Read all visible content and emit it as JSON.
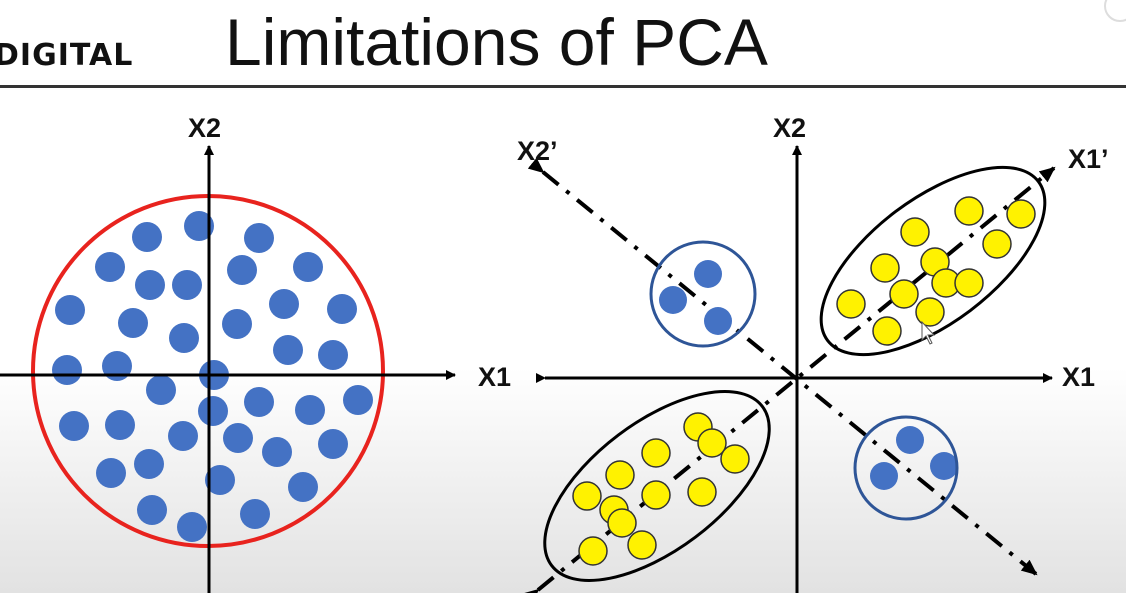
{
  "logo_text": "DIGITAL",
  "title": "Limitations of PCA",
  "colors": {
    "blue_point": "#4472C4",
    "yellow_point": "#FFF200",
    "circle": "#E8231E",
    "ellipse": "#000000",
    "cluster_ring": "#2E5597"
  },
  "left_plot": {
    "x_axis_label": "X1",
    "y_axis_label": "X2"
  },
  "right_plot": {
    "x_axis_label": "X1",
    "y_axis_label": "X2",
    "pc1_label": "X1’",
    "pc2_label": "X2’"
  }
}
